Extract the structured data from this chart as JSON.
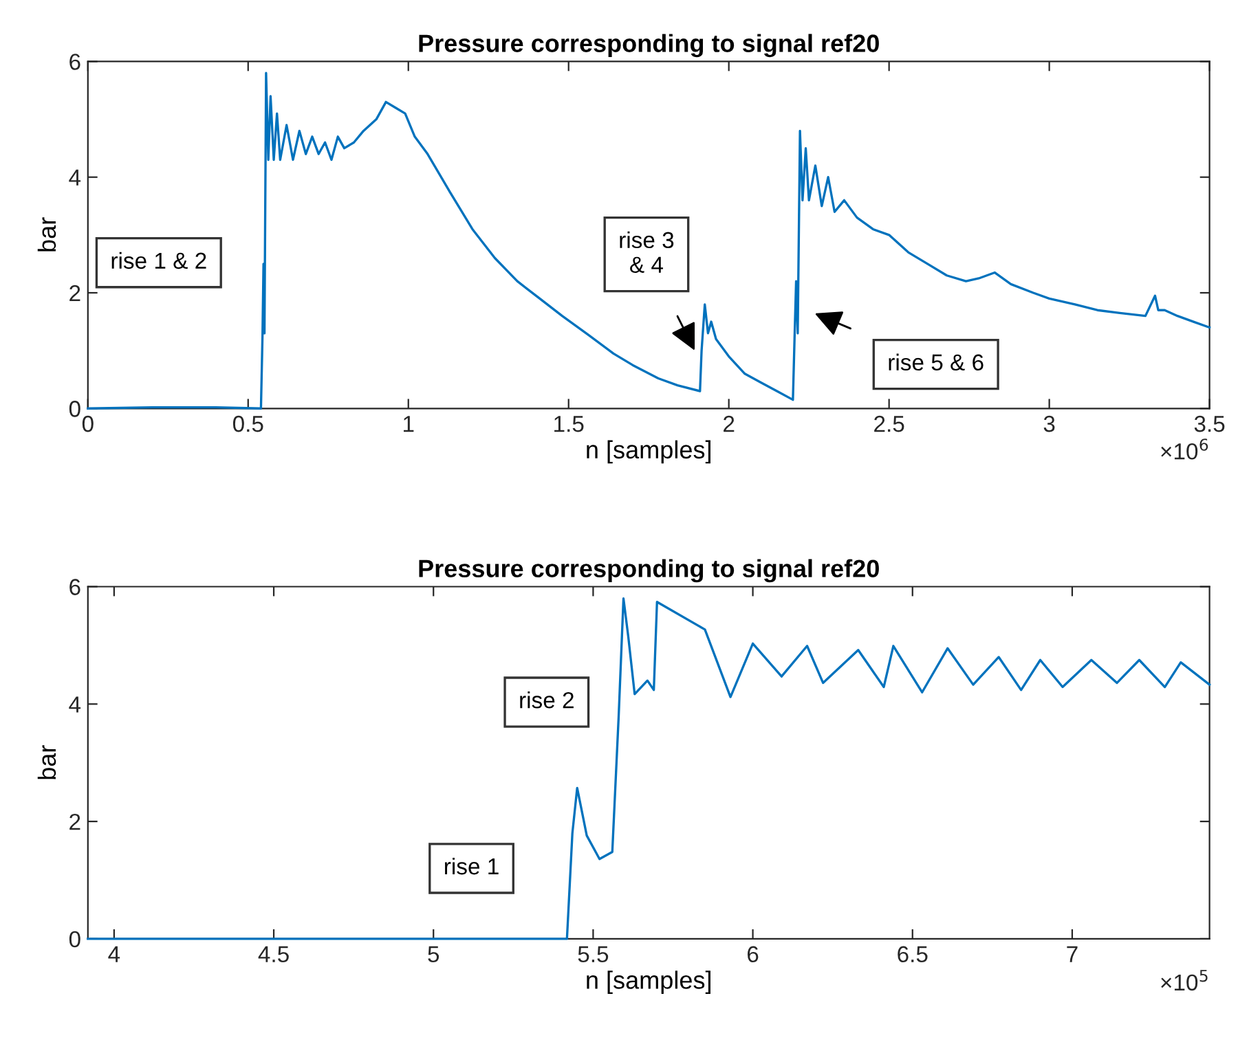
{
  "chart_data": [
    {
      "type": "line",
      "title": "Pressure corresponding to signal ref20",
      "xlabel": "n [samples]",
      "ylabel": "bar",
      "x": [
        0,
        0.2,
        0.4,
        0.54,
        0.545,
        0.548,
        0.551,
        0.556,
        0.563,
        0.57,
        0.58,
        0.59,
        0.6,
        0.62,
        0.64,
        0.66,
        0.68,
        0.7,
        0.72,
        0.74,
        0.76,
        0.78,
        0.8,
        0.83,
        0.86,
        0.9,
        0.93,
        0.96,
        0.99,
        1.02,
        1.06,
        1.13,
        1.2,
        1.27,
        1.34,
        1.41,
        1.48,
        1.56,
        1.64,
        1.7,
        1.78,
        1.84,
        1.91,
        1.915,
        1.925,
        1.935,
        1.945,
        1.96,
        2.0,
        2.05,
        2.1,
        2.15,
        2.2,
        2.205,
        2.21,
        2.215,
        2.222,
        2.23,
        2.24,
        2.25,
        2.27,
        2.29,
        2.31,
        2.33,
        2.36,
        2.4,
        2.45,
        2.5,
        2.56,
        2.62,
        2.68,
        2.74,
        2.78,
        2.83,
        2.88,
        2.95,
        3.0,
        3.08,
        3.15,
        3.22,
        3.3,
        3.33,
        3.34,
        3.36,
        3.4,
        3.45,
        3.5
      ],
      "series": [
        {
          "color": "#0072bd",
          "values": [
            0,
            0.02,
            0.02,
            0,
            1.3,
            2.5,
            1.3,
            5.8,
            4.3,
            5.4,
            4.3,
            5.1,
            4.3,
            4.9,
            4.3,
            4.8,
            4.4,
            4.7,
            4.4,
            4.6,
            4.3,
            4.7,
            4.5,
            4.6,
            4.8,
            5.0,
            5.3,
            5.2,
            5.1,
            4.7,
            4.4,
            3.74,
            3.1,
            2.6,
            2.2,
            1.9,
            1.6,
            1.28,
            0.95,
            0.75,
            0.52,
            0.4,
            0.3,
            1.0,
            1.8,
            1.3,
            1.5,
            1.2,
            0.9,
            0.6,
            0.45,
            0.3,
            0.15,
            1.2,
            2.2,
            1.3,
            4.8,
            3.6,
            4.5,
            3.6,
            4.2,
            3.5,
            4.0,
            3.4,
            3.6,
            3.3,
            3.1,
            3.0,
            2.7,
            2.5,
            2.3,
            2.2,
            2.25,
            2.35,
            2.15,
            2.0,
            1.9,
            1.8,
            1.7,
            1.65,
            1.6,
            1.95,
            1.7,
            1.7,
            1.6,
            1.5,
            1.4
          ]
        }
      ],
      "xlim": [
        0,
        3.5
      ],
      "xticks": [
        0,
        0.5,
        1,
        1.5,
        2,
        2.5,
        3,
        3.5
      ],
      "ylim": [
        0,
        6
      ],
      "yticks": [
        0,
        2,
        4,
        6
      ],
      "grid": false,
      "legend": false,
      "annotations": [
        "×10$^{6}$",
        "rise 1 & 2",
        "rise 3\n& 4",
        "rise 5 & 6"
      ]
    },
    {
      "type": "line",
      "title": "Pressure corresponding to signal ref20",
      "xlabel": "n [samples]",
      "ylabel": "bar",
      "x": [
        3.918,
        4.5,
        5.0,
        5.418,
        5.435,
        5.45,
        5.48,
        5.52,
        5.56,
        5.58,
        5.595,
        5.61,
        5.63,
        5.67,
        5.69,
        5.7,
        5.85,
        5.93,
        6.0,
        6.09,
        6.17,
        6.22,
        6.33,
        6.41,
        6.44,
        6.53,
        6.61,
        6.69,
        6.77,
        6.84,
        6.9,
        6.97,
        7.06,
        7.14,
        7.21,
        7.29,
        7.34,
        7.43
      ],
      "series": [
        {
          "color": "#0072bd",
          "values": [
            0,
            0,
            0,
            0,
            1.8,
            2.57,
            1.76,
            1.36,
            1.48,
            3.8,
            5.8,
            5.15,
            4.17,
            4.4,
            4.24,
            5.74,
            5.27,
            4.12,
            5.03,
            4.47,
            4.99,
            4.36,
            4.92,
            4.29,
            4.99,
            4.2,
            4.95,
            4.33,
            4.8,
            4.24,
            4.75,
            4.29,
            4.75,
            4.36,
            4.75,
            4.29,
            4.71,
            4.33
          ]
        }
      ],
      "xlim": [
        3.918,
        7.43
      ],
      "xticks": [
        4,
        4.5,
        5,
        5.5,
        6,
        6.5,
        7
      ],
      "ylim": [
        0,
        6
      ],
      "yticks": [
        0,
        2,
        4,
        6
      ],
      "grid": false,
      "legend": false,
      "annotations": [
        "×10$^{5}$",
        "rise 2",
        "rise 1"
      ]
    }
  ]
}
